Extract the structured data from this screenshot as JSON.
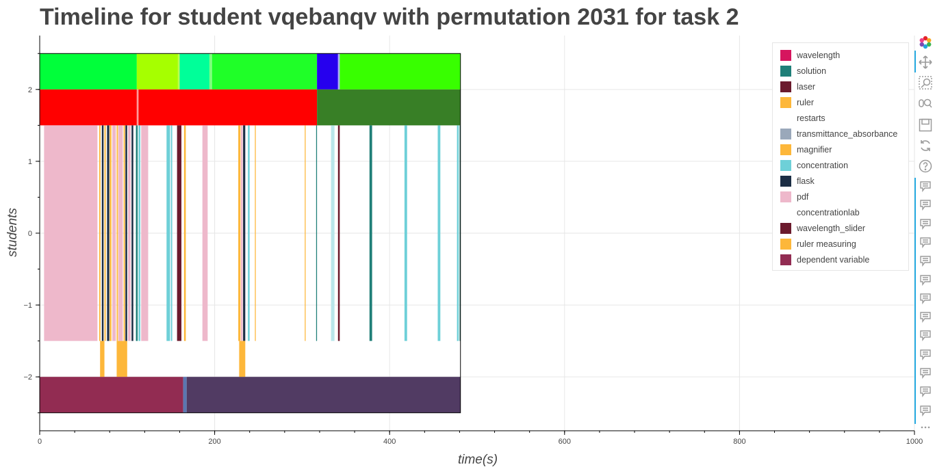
{
  "chart_data": {
    "type": "timeline",
    "title": "Timeline for student vqebanqv with permutation 2031 for task 2",
    "xlabel": "time(s)",
    "ylabel": "students",
    "xlim": [
      0,
      1000
    ],
    "ylim": [
      -2.75,
      2.75
    ],
    "x_ticks": [
      0,
      200,
      400,
      600,
      800,
      1000
    ],
    "x_tick_labels": [
      "0",
      "200",
      "400",
      "600",
      "800",
      "1000"
    ],
    "y_ticks": [
      -2,
      -1,
      0,
      1,
      2
    ],
    "y_tick_labels": [
      "−2",
      "−1",
      "0",
      "1",
      "2"
    ],
    "grid": true,
    "legend_position": "top-right",
    "legend": [
      {
        "label": "wavelength",
        "color": "#d6155e"
      },
      {
        "label": "solution",
        "color": "#1f7f78"
      },
      {
        "label": "laser",
        "color": "#6b1a2d"
      },
      {
        "label": "ruler",
        "color": "#fdb73a"
      },
      {
        "label": "restarts",
        "color": "#ffffff"
      },
      {
        "label": "transmittance_absorbance",
        "color": "#9aa8ba"
      },
      {
        "label": "magnifier",
        "color": "#fdb73a"
      },
      {
        "label": "concentration",
        "color": "#6ed0d8"
      },
      {
        "label": "flask",
        "color": "#1c2e45"
      },
      {
        "label": "pdf",
        "color": "#eeb8cb"
      },
      {
        "label": "concentrationlab",
        "color": "#ffffff"
      },
      {
        "label": "wavelength_slider",
        "color": "#6b1a2d"
      },
      {
        "label": "ruler measuring",
        "color": "#fdb73a"
      },
      {
        "label": "dependent variable",
        "color": "#922c52"
      }
    ],
    "bands": [
      {
        "y0": 2.0,
        "y1": 2.5,
        "segments": [
          {
            "x0": 0,
            "x1": 111,
            "color": "#00ff3a"
          },
          {
            "x0": 111,
            "x1": 158,
            "color": "#a6ff00"
          },
          {
            "x0": 158,
            "x1": 160,
            "color": "#b8ff50"
          },
          {
            "x0": 160,
            "x1": 194,
            "color": "#00ff99"
          },
          {
            "x0": 194,
            "x1": 197,
            "color": "#7dff7d"
          },
          {
            "x0": 197,
            "x1": 317,
            "color": "#1fff28"
          },
          {
            "x0": 317,
            "x1": 341,
            "color": "#2600ee"
          },
          {
            "x0": 341,
            "x1": 343,
            "color": "#aaaaff"
          },
          {
            "x0": 343,
            "x1": 481,
            "color": "#38ff00"
          }
        ]
      },
      {
        "y0": 1.5,
        "y1": 2.0,
        "segments": [
          {
            "x0": 0,
            "x1": 111,
            "color": "#ff0000"
          },
          {
            "x0": 111,
            "x1": 113,
            "color": "#ff9a9a"
          },
          {
            "x0": 113,
            "x1": 317,
            "color": "#ff0000"
          },
          {
            "x0": 317,
            "x1": 481,
            "color": "#387f26"
          }
        ]
      },
      {
        "y0": -1.5,
        "y1": 1.5,
        "segments": [
          {
            "x0": 5,
            "x1": 66,
            "color": "#eeb8cb"
          },
          {
            "x0": 68,
            "x1": 69.5,
            "color": "#fdb73a"
          },
          {
            "x0": 71,
            "x1": 73,
            "color": "#1c2e45"
          },
          {
            "x0": 74,
            "x1": 75.5,
            "color": "#fdb73a"
          },
          {
            "x0": 77,
            "x1": 79.5,
            "color": "#1c2e45"
          },
          {
            "x0": 80,
            "x1": 82,
            "color": "#fdb73a"
          },
          {
            "x0": 83,
            "x1": 87,
            "color": "#eeb8cb"
          },
          {
            "x0": 88,
            "x1": 89.5,
            "color": "#fdb73a"
          },
          {
            "x0": 90,
            "x1": 95,
            "color": "#eeb8cb"
          },
          {
            "x0": 96,
            "x1": 97.5,
            "color": "#fdb73a"
          },
          {
            "x0": 98,
            "x1": 100,
            "color": "#1c2e45"
          },
          {
            "x0": 101,
            "x1": 104,
            "color": "#eeb8cb"
          },
          {
            "x0": 105,
            "x1": 107,
            "color": "#1c2e45"
          },
          {
            "x0": 110,
            "x1": 112,
            "color": "#1f7f78"
          },
          {
            "x0": 113,
            "x1": 115,
            "color": "#6ed0d8"
          },
          {
            "x0": 116,
            "x1": 124,
            "color": "#eeb8cb"
          },
          {
            "x0": 145,
            "x1": 149,
            "color": "#6ed0d8"
          },
          {
            "x0": 150,
            "x1": 151.5,
            "color": "#6ed0d8"
          },
          {
            "x0": 157,
            "x1": 162,
            "color": "#6b1a2d"
          },
          {
            "x0": 165,
            "x1": 167,
            "color": "#fdb73a"
          },
          {
            "x0": 186,
            "x1": 192,
            "color": "#eeb8cb"
          },
          {
            "x0": 227,
            "x1": 229.5,
            "color": "#fdb73a"
          },
          {
            "x0": 230,
            "x1": 232,
            "color": "#eeb8cb"
          },
          {
            "x0": 232.5,
            "x1": 235,
            "color": "#1c2e45"
          },
          {
            "x0": 238,
            "x1": 240,
            "color": "#6ed0d8"
          },
          {
            "x0": 246,
            "x1": 247,
            "color": "#fdb73a"
          },
          {
            "x0": 303,
            "x1": 304,
            "color": "#fdb73a"
          },
          {
            "x0": 316,
            "x1": 317,
            "color": "#1f7f78"
          },
          {
            "x0": 333,
            "x1": 337,
            "color": "#b9e6ea"
          },
          {
            "x0": 341,
            "x1": 343,
            "color": "#6b1a2d"
          },
          {
            "x0": 377,
            "x1": 380,
            "color": "#1f7f78"
          },
          {
            "x0": 417,
            "x1": 420,
            "color": "#6ed0d8"
          },
          {
            "x0": 455,
            "x1": 458,
            "color": "#6ed0d8"
          },
          {
            "x0": 477,
            "x1": 479,
            "color": "#6ed0d8"
          },
          {
            "x0": 480,
            "x1": 481,
            "color": "#1f7f78"
          }
        ]
      },
      {
        "y0": -2.0,
        "y1": -1.5,
        "segments": [
          {
            "x0": 69,
            "x1": 74,
            "color": "#fdb73a"
          },
          {
            "x0": 88,
            "x1": 100,
            "color": "#fdb73a"
          },
          {
            "x0": 228,
            "x1": 235,
            "color": "#fdb73a"
          }
        ]
      },
      {
        "y0": -2.5,
        "y1": -2.0,
        "segments": [
          {
            "x0": 0,
            "x1": 164,
            "color": "#922c52"
          },
          {
            "x0": 164,
            "x1": 168,
            "color": "#5b77b0"
          },
          {
            "x0": 168,
            "x1": 481,
            "color": "#513b63"
          }
        ]
      }
    ],
    "outlined_region": {
      "x0": 0,
      "x1": 481,
      "y0": -2.5,
      "y1": 2.5
    }
  },
  "toolbar": {
    "icons": [
      "bokeh-logo-icon",
      "pan-icon",
      "box-zoom-icon",
      "wheel-zoom-icon",
      "save-icon",
      "reset-icon",
      "help-icon",
      "hover-icon",
      "more-icon"
    ],
    "hover_count": 13
  }
}
